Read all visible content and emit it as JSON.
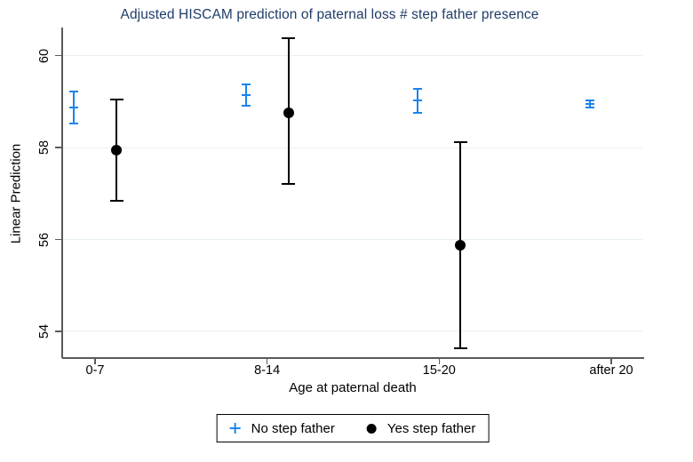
{
  "title": "Adjusted HISCAM prediction of paternal loss # step father presence",
  "colors": {
    "title": "#203c68",
    "no_step_father": "#1a84ec",
    "yes_step_father": "#000000",
    "grid": "#e7f0f2",
    "axis": "#5a5a5a",
    "background": "#ffffff"
  },
  "chart_data": {
    "type": "scatter",
    "subtype": "error-bar (point estimate with 95% CI caps)",
    "title": "Adjusted HISCAM prediction of paternal loss # step father presence",
    "xlabel": "Age at paternal death",
    "ylabel": "Linear Prediction",
    "categories": [
      "0-7",
      "8-14",
      "15-20",
      "after 20"
    ],
    "yticks": [
      54,
      56,
      58,
      60
    ],
    "ytick_labels": [
      "54",
      "56",
      "58",
      "60"
    ],
    "ylim": [
      53.42,
      60.61
    ],
    "grid": true,
    "legend_position": "bottom",
    "series": [
      {
        "name": "No step father",
        "marker": "plus",
        "color": "#1a84ec",
        "values": [
          58.87,
          59.14,
          59.03,
          58.95
        ],
        "ci_low": [
          58.53,
          58.91,
          58.76,
          58.87
        ],
        "ci_high": [
          59.22,
          59.38,
          59.28,
          59.03
        ]
      },
      {
        "name": "Yes step father",
        "marker": "circle",
        "color": "#000000",
        "values": [
          57.94,
          58.76,
          55.87,
          null
        ],
        "ci_low": [
          56.84,
          57.2,
          53.63,
          null
        ],
        "ci_high": [
          59.05,
          60.37,
          58.12,
          null
        ]
      }
    ]
  }
}
